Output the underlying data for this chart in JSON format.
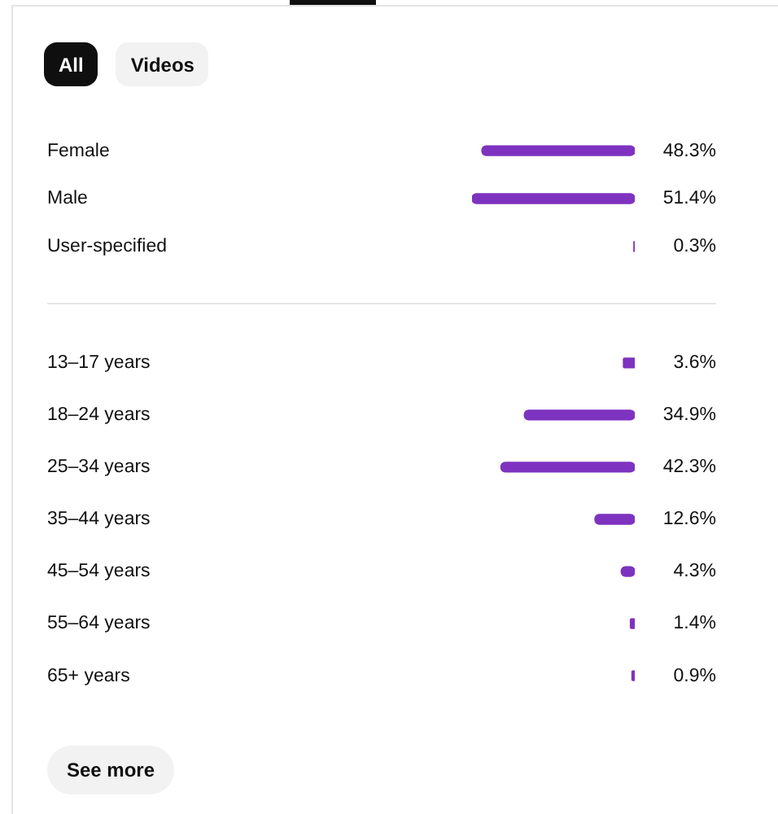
{
  "chart_data": [
    {
      "type": "bar",
      "orientation": "horizontal",
      "categories": [
        "Female",
        "Male",
        "User-specified"
      ],
      "values": [
        48.3,
        51.4,
        0.3
      ],
      "value_labels": [
        "48.3%",
        "51.4%",
        "0.3%"
      ],
      "color": "#7d33bf",
      "tick_labels": "y",
      "annotations": [
        "All",
        "Videos"
      ]
    },
    {
      "type": "bar",
      "orientation": "horizontal",
      "categories": [
        "13–17 years",
        "18–24 years",
        "25–34 years",
        "35–44 years",
        "45–54 years",
        "55–64 years",
        "65+ years"
      ],
      "values": [
        3.6,
        34.9,
        42.3,
        12.6,
        4.3,
        1.4,
        0.9
      ],
      "value_labels": [
        "3.6%",
        "34.9%",
        "42.3%",
        "12.6%",
        "4.3%",
        "1.4%",
        "0.9%"
      ],
      "color": "#7d33bf",
      "tick_labels": "y",
      "annotations": [
        "See more"
      ]
    }
  ]
}
